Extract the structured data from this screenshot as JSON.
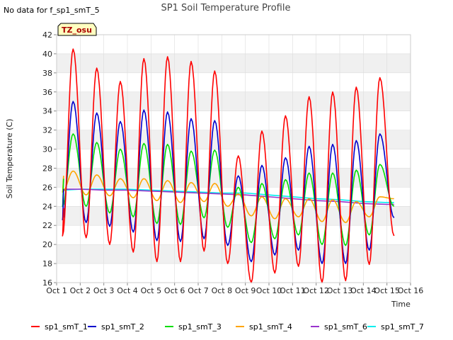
{
  "chart_data": {
    "type": "line",
    "title": "SP1 Soil Temperature Profile",
    "note": "No data for f_sp1_smT_5",
    "badge": "TZ_osu",
    "xlabel": "Time",
    "ylabel": "Soil Temperature (C)",
    "ylim": [
      16,
      42
    ],
    "xlim": [
      1.0,
      16.0
    ],
    "yticks": [
      16,
      18,
      20,
      22,
      24,
      26,
      28,
      30,
      32,
      34,
      36,
      38,
      40,
      42
    ],
    "xtick_labels": [
      "Oct 1",
      "Oct 2",
      "Oct 3",
      "Oct 4",
      "Oct 5",
      "Oct 6",
      "Oct 7",
      "Oct 8",
      "Oct 9",
      "Oct 10",
      "Oct 11",
      "Oct 12",
      "Oct 13",
      "Oct 14",
      "Oct 15",
      "Oct 16"
    ],
    "grid": true,
    "legend_position": "bottom",
    "series": [
      {
        "name": "sp1_smT_1",
        "color": "#ff0000",
        "daily_max": [
          40.5,
          38.5,
          37.1,
          39.5,
          39.7,
          39.2,
          38.2,
          29.3,
          31.9,
          33.5,
          35.5,
          36.0,
          36.5,
          37.5
        ],
        "daily_min": [
          20.9,
          20.7,
          20.0,
          19.2,
          18.2,
          18.2,
          19.3,
          18.0,
          16.0,
          17.0,
          17.7,
          16.0,
          16.2,
          17.9
        ],
        "start": 23.8,
        "end": 20.9
      },
      {
        "name": "sp1_smT_2",
        "color": "#0000cc",
        "daily_max": [
          35.0,
          33.8,
          32.9,
          34.1,
          33.9,
          33.2,
          33.0,
          27.2,
          28.3,
          29.1,
          30.3,
          30.5,
          30.9,
          31.6
        ],
        "daily_min": [
          22.6,
          22.3,
          21.9,
          21.3,
          20.4,
          20.3,
          20.6,
          19.9,
          18.2,
          18.9,
          19.4,
          18.0,
          18.0,
          19.4
        ],
        "start": 25.8,
        "end": 22.8
      },
      {
        "name": "sp1_smT_3",
        "color": "#00dd00",
        "daily_max": [
          31.6,
          30.7,
          30.0,
          30.6,
          30.5,
          29.8,
          29.9,
          26.0,
          26.4,
          26.8,
          27.5,
          27.5,
          27.8,
          28.4
        ],
        "daily_min": [
          24.0,
          24.0,
          23.3,
          22.9,
          22.2,
          22.1,
          22.8,
          21.8,
          20.2,
          20.6,
          21.0,
          20.0,
          19.9,
          21.0
        ],
        "start": 26.9,
        "end": 24.0
      },
      {
        "name": "sp1_smT_4",
        "color": "#ffa500",
        "daily_max": [
          27.7,
          27.3,
          26.9,
          26.9,
          26.7,
          26.5,
          26.4,
          25.3,
          25.0,
          24.8,
          24.8,
          24.7,
          24.5,
          25.0
        ],
        "daily_min": [
          25.5,
          25.2,
          25.1,
          24.9,
          24.6,
          24.4,
          24.5,
          24.0,
          23.0,
          22.7,
          22.9,
          22.4,
          22.3,
          22.9
        ],
        "start": 27.2,
        "end": 24.8
      },
      {
        "name": "sp1_smT_6",
        "color": "#9933cc",
        "x": [
          1.3,
          2.0,
          3.0,
          4.0,
          5.0,
          6.0,
          7.0,
          8.0,
          9.0,
          10.0,
          11.0,
          12.0,
          13.0,
          14.0,
          15.0,
          15.3
        ],
        "y": [
          25.8,
          25.8,
          25.7,
          25.7,
          25.6,
          25.5,
          25.4,
          25.3,
          25.2,
          25.0,
          24.8,
          24.6,
          24.5,
          24.3,
          24.2,
          24.2
        ]
      },
      {
        "name": "sp1_smT_7",
        "color": "#00eeee",
        "x": [
          1.3,
          2.0,
          3.0,
          4.0,
          5.0,
          6.0,
          7.0,
          8.0,
          9.0,
          10.0,
          11.0,
          12.0,
          13.0,
          14.0,
          15.0,
          15.3
        ],
        "y": [
          25.7,
          25.8,
          25.8,
          25.8,
          25.7,
          25.6,
          25.5,
          25.4,
          25.4,
          25.2,
          25.0,
          24.8,
          24.7,
          24.5,
          24.4,
          24.4
        ]
      }
    ]
  }
}
